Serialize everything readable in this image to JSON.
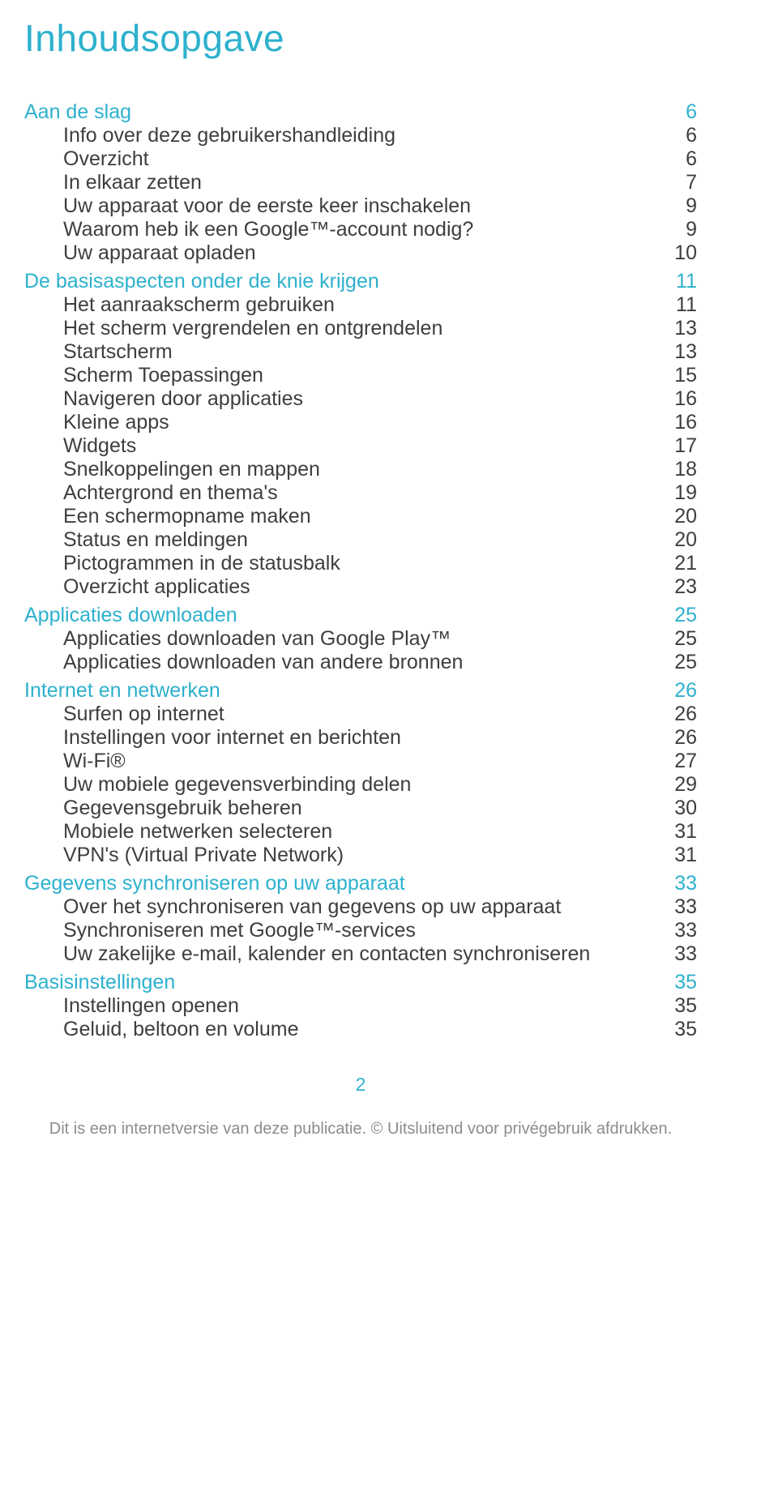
{
  "colors": {
    "accent": "#2db1cd",
    "text": "#3e3e3e",
    "footer": "#8c8c8c",
    "pagenum": "#2db1cd",
    "background": "#ffffff"
  },
  "title": "Inhoudsopgave",
  "page_number": "2",
  "footer_text": "Dit is een internetversie van deze publicatie. © Uitsluitend voor privégebruik afdrukken.",
  "toc": [
    {
      "type": "section",
      "label": "Aan de slag",
      "page": "6"
    },
    {
      "type": "item",
      "label": "Info over deze gebruikershandleiding",
      "page": "6"
    },
    {
      "type": "item",
      "label": "Overzicht",
      "page": "6"
    },
    {
      "type": "item",
      "label": "In elkaar zetten",
      "page": "7"
    },
    {
      "type": "item",
      "label": "Uw apparaat voor de eerste keer inschakelen",
      "page": "9"
    },
    {
      "type": "item",
      "label": "Waarom heb ik een Google™-account nodig?",
      "page": "9"
    },
    {
      "type": "item",
      "label": "Uw apparaat opladen",
      "page": "10"
    },
    {
      "type": "section",
      "label": "De basisaspecten onder de knie krijgen",
      "page": "11"
    },
    {
      "type": "item",
      "label": "Het aanraakscherm gebruiken",
      "page": "11"
    },
    {
      "type": "item",
      "label": "Het scherm vergrendelen en ontgrendelen",
      "page": "13"
    },
    {
      "type": "item",
      "label": "Startscherm",
      "page": "13"
    },
    {
      "type": "item",
      "label": "Scherm Toepassingen",
      "page": "15"
    },
    {
      "type": "item",
      "label": "Navigeren door applicaties",
      "page": "16"
    },
    {
      "type": "item",
      "label": "Kleine apps",
      "page": "16"
    },
    {
      "type": "item",
      "label": "Widgets",
      "page": "17"
    },
    {
      "type": "item",
      "label": "Snelkoppelingen en mappen",
      "page": "18"
    },
    {
      "type": "item",
      "label": "Achtergrond en thema's",
      "page": "19"
    },
    {
      "type": "item",
      "label": "Een schermopname maken",
      "page": "20"
    },
    {
      "type": "item",
      "label": "Status en meldingen",
      "page": "20"
    },
    {
      "type": "item",
      "label": "Pictogrammen in de statusbalk",
      "page": "21"
    },
    {
      "type": "item",
      "label": "Overzicht applicaties",
      "page": "23"
    },
    {
      "type": "section",
      "label": "Applicaties downloaden",
      "page": "25"
    },
    {
      "type": "item",
      "label": "Applicaties downloaden van Google Play™",
      "page": "25"
    },
    {
      "type": "item",
      "label": "Applicaties downloaden van andere bronnen",
      "page": "25"
    },
    {
      "type": "section",
      "label": "Internet en netwerken",
      "page": "26"
    },
    {
      "type": "item",
      "label": "Surfen op internet",
      "page": "26"
    },
    {
      "type": "item",
      "label": "Instellingen voor internet en berichten",
      "page": "26"
    },
    {
      "type": "item",
      "label": "Wi-Fi®",
      "page": "27"
    },
    {
      "type": "item",
      "label": "Uw mobiele gegevensverbinding delen",
      "page": "29"
    },
    {
      "type": "item",
      "label": "Gegevensgebruik beheren",
      "page": "30"
    },
    {
      "type": "item",
      "label": "Mobiele netwerken selecteren",
      "page": "31"
    },
    {
      "type": "item",
      "label": "VPN's (Virtual Private Network)",
      "page": "31"
    },
    {
      "type": "section",
      "label": "Gegevens synchroniseren op uw apparaat",
      "page": "33"
    },
    {
      "type": "item",
      "label": "Over het synchroniseren van gegevens op uw apparaat",
      "page": "33"
    },
    {
      "type": "item",
      "label": "Synchroniseren met Google™-services",
      "page": "33"
    },
    {
      "type": "item",
      "label": "Uw zakelijke e-mail, kalender en contacten synchroniseren",
      "page": "33"
    },
    {
      "type": "section",
      "label": "Basisinstellingen",
      "page": "35"
    },
    {
      "type": "item",
      "label": "Instellingen openen",
      "page": "35"
    },
    {
      "type": "item",
      "label": "Geluid, beltoon en volume",
      "page": "35"
    }
  ]
}
